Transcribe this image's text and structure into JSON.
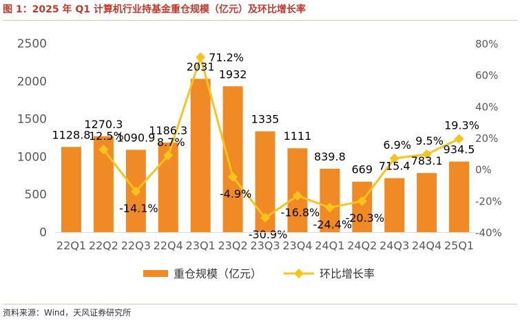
{
  "title": "图 1：2025 年 Q1 计算机行业持基金重仓规模（亿元）及环比增长率",
  "source": "资料来源：Wind，天风证券研究所",
  "colors": {
    "bar": "#F08A24",
    "line": "#F7C31E",
    "title": "#c0392b",
    "axis_text": "#595959"
  },
  "chart_data": {
    "type": "bar",
    "categories": [
      "22Q1",
      "22Q2",
      "22Q3",
      "22Q4",
      "23Q1",
      "23Q2",
      "23Q3",
      "23Q4",
      "24Q1",
      "24Q2",
      "24Q3",
      "24Q4",
      "25Q1"
    ],
    "series": [
      {
        "name": "重仓规模（亿元）",
        "type": "bar",
        "axis": "left",
        "values": [
          1128.8,
          1270.3,
          1090.9,
          1186.3,
          2031,
          1932,
          1335,
          1111,
          839.8,
          669,
          715.4,
          783.1,
          934.5
        ],
        "labels": [
          "1128.8",
          "1270.3",
          "1090.9",
          "1186.3",
          "2031",
          "1932",
          "1335",
          "1111",
          "839.8",
          "669",
          "715.4",
          "783.1",
          "934.5"
        ]
      },
      {
        "name": "环比增长率",
        "type": "line",
        "axis": "right",
        "values": [
          null,
          12.5,
          -14.1,
          8.7,
          71.2,
          -4.9,
          -30.9,
          -16.8,
          -24.4,
          -20.3,
          6.9,
          9.5,
          19.3
        ],
        "labels": [
          "",
          "12.5%",
          "-14.1%",
          "8.7%",
          "71.2%",
          "-4.9%",
          "-30.9%",
          "-16.8%",
          "-24.4%",
          "-20.3%",
          "6.9%",
          "9.5%",
          "19.3%"
        ]
      }
    ],
    "y_left": {
      "range": [
        0,
        2500
      ],
      "ticks": [
        "0",
        "500",
        "1000",
        "1500",
        "2000",
        "2500"
      ]
    },
    "y_right": {
      "range": [
        -40,
        80
      ],
      "ticks": [
        "-40%",
        "-20%",
        "0%",
        "20%",
        "40%",
        "60%",
        "80%"
      ]
    },
    "grid": false,
    "legend_position": "bottom"
  }
}
